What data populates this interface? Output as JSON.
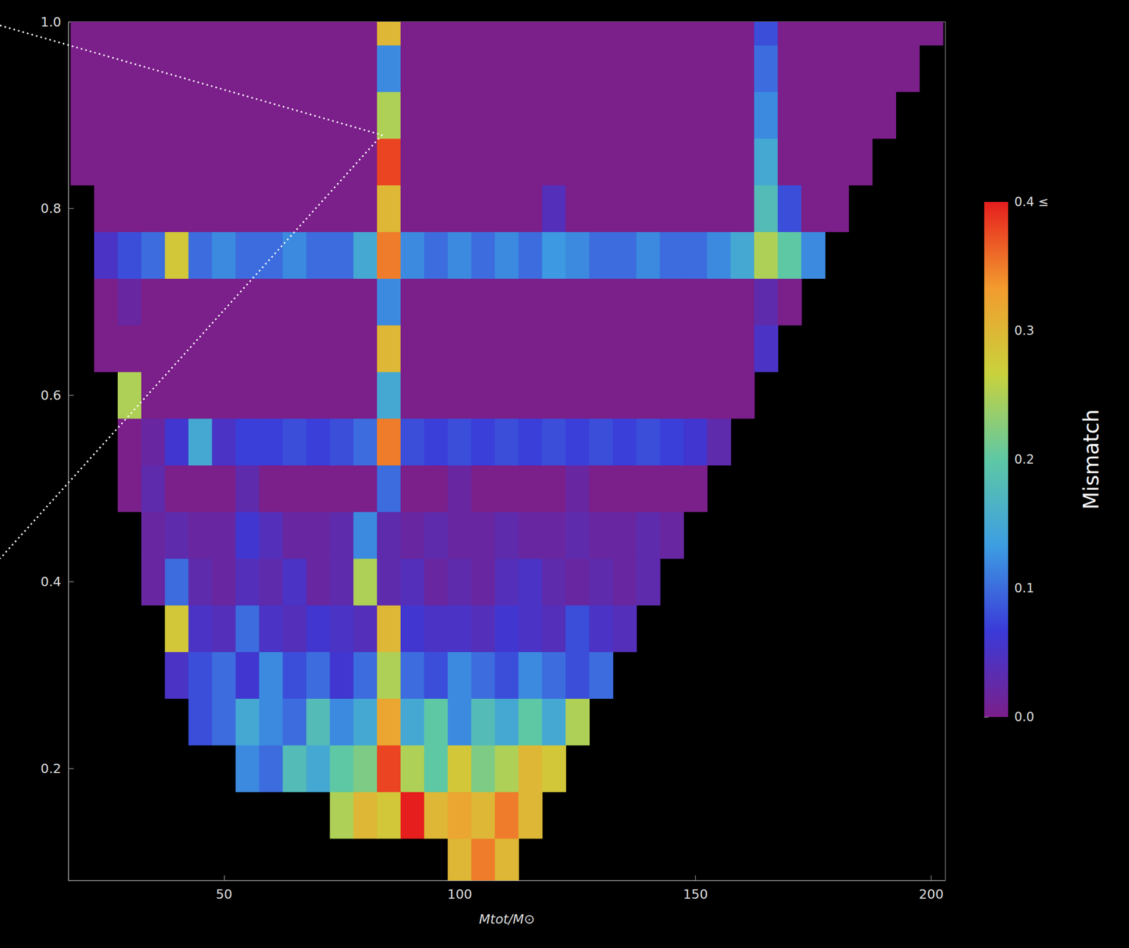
{
  "chart_data": {
    "type": "heatmap",
    "x_label": "Mtot/M⊙",
    "xlim": [
      17,
      203
    ],
    "xticks": [
      50,
      100,
      150,
      200
    ],
    "ylim": [
      0.08,
      1
    ],
    "yticks": [
      0.2,
      0.4,
      0.6,
      0.8,
      {
        "value": 1,
        "label": "1.0"
      }
    ],
    "grid": false,
    "x": [
      20,
      25,
      30,
      35,
      40,
      45,
      50,
      55,
      60,
      65,
      70,
      75,
      80,
      85,
      90,
      95,
      100,
      105,
      110,
      115,
      120,
      125,
      130,
      135,
      140,
      145,
      150,
      155,
      160,
      165,
      170,
      175,
      180,
      185,
      190,
      195,
      200
    ],
    "y": [
      0.1,
      0.15,
      0.2,
      0.25,
      0.3,
      0.35,
      0.4,
      0.45,
      0.5,
      0.55,
      0.6,
      0.65,
      0.7,
      0.75,
      0.8,
      0.85,
      0.9,
      0.95,
      1
    ],
    "values": [
      [
        null,
        null,
        null,
        null,
        null,
        null,
        null,
        null,
        null,
        null,
        null,
        null,
        null,
        null,
        null,
        null,
        0.3,
        0.35,
        0.3,
        null,
        null,
        null,
        null,
        null,
        null,
        null,
        null,
        null,
        null,
        null,
        null,
        null,
        null,
        null,
        null,
        null,
        null
      ],
      [
        null,
        null,
        null,
        null,
        null,
        null,
        null,
        null,
        null,
        null,
        null,
        0.25,
        0.3,
        0.28,
        0.4,
        0.3,
        0.32,
        0.3,
        0.35,
        0.3,
        null,
        null,
        null,
        null,
        null,
        null,
        null,
        null,
        null,
        null,
        null,
        null,
        null,
        null,
        null,
        null,
        null
      ],
      [
        null,
        null,
        null,
        null,
        null,
        null,
        null,
        0.12,
        0.1,
        0.18,
        0.15,
        0.2,
        0.22,
        0.38,
        0.25,
        0.2,
        0.28,
        0.22,
        0.25,
        0.3,
        0.28,
        null,
        null,
        null,
        null,
        null,
        null,
        null,
        null,
        null,
        null,
        null,
        null,
        null,
        null,
        null,
        null
      ],
      [
        null,
        null,
        null,
        null,
        null,
        0.08,
        0.1,
        0.15,
        0.12,
        0.1,
        0.18,
        0.12,
        0.15,
        0.32,
        0.15,
        0.2,
        0.12,
        0.18,
        0.15,
        0.2,
        0.15,
        0.25,
        null,
        null,
        null,
        null,
        null,
        null,
        null,
        null,
        null,
        null,
        null,
        null,
        null,
        null,
        null
      ],
      [
        null,
        null,
        null,
        null,
        0.05,
        0.08,
        0.1,
        0.06,
        0.12,
        0.08,
        0.1,
        0.06,
        0.1,
        0.25,
        0.1,
        0.08,
        0.12,
        0.1,
        0.08,
        0.12,
        0.1,
        0.08,
        0.1,
        null,
        null,
        null,
        null,
        null,
        null,
        null,
        null,
        null,
        null,
        null,
        null,
        null,
        null
      ],
      [
        null,
        null,
        null,
        null,
        0.28,
        0.05,
        0.04,
        0.1,
        0.05,
        0.04,
        0.06,
        0.05,
        0.04,
        0.3,
        0.06,
        0.05,
        0.05,
        0.04,
        0.06,
        0.05,
        0.04,
        0.08,
        0.05,
        0.04,
        null,
        null,
        null,
        null,
        null,
        null,
        null,
        null,
        null,
        null,
        null,
        null,
        null
      ],
      [
        null,
        null,
        null,
        0.02,
        0.1,
        0.03,
        0.02,
        0.04,
        0.03,
        0.05,
        0.02,
        0.03,
        0.25,
        0.03,
        0.04,
        0.02,
        0.03,
        0.02,
        0.04,
        0.05,
        0.03,
        0.02,
        0.03,
        0.02,
        0.03,
        null,
        null,
        null,
        null,
        null,
        null,
        null,
        null,
        null,
        null,
        null,
        null
      ],
      [
        null,
        null,
        null,
        0.02,
        0.03,
        0.02,
        0.02,
        0.06,
        0.04,
        0.02,
        0.02,
        0.03,
        0.12,
        0.03,
        0.02,
        0.03,
        0.02,
        0.02,
        0.03,
        0.02,
        0.02,
        0.03,
        0.02,
        0.02,
        0.03,
        0.02,
        null,
        null,
        null,
        null,
        null,
        null,
        null,
        null,
        null,
        null,
        null
      ],
      [
        null,
        null,
        0,
        0.03,
        0,
        0,
        0,
        0.03,
        0,
        0,
        0,
        0,
        0,
        0.1,
        0,
        0,
        0.02,
        0,
        0,
        0,
        0,
        0.02,
        0,
        0,
        0,
        0,
        0,
        null,
        null,
        null,
        null,
        null,
        null,
        null,
        null,
        null,
        null
      ],
      [
        null,
        null,
        0,
        0.02,
        0.06,
        0.15,
        0.05,
        0.07,
        0.07,
        0.08,
        0.07,
        0.08,
        0.1,
        0.35,
        0.08,
        0.07,
        0.08,
        0.07,
        0.08,
        0.07,
        0.08,
        0.07,
        0.08,
        0.07,
        0.08,
        0.07,
        0.06,
        0.03,
        null,
        null,
        null,
        null,
        null,
        null,
        null,
        null,
        null
      ],
      [
        null,
        null,
        0.25,
        0,
        0,
        0,
        0,
        0,
        0,
        0,
        0,
        0,
        0,
        0.15,
        0,
        0,
        0,
        0,
        0,
        0,
        0,
        0,
        0,
        0,
        0,
        0,
        0,
        0,
        0,
        null,
        null,
        null,
        null,
        null,
        null,
        null,
        null
      ],
      [
        null,
        0,
        0,
        0,
        0,
        0,
        0,
        0,
        0,
        0,
        0,
        0,
        0,
        0.3,
        0,
        0,
        0,
        0,
        0,
        0,
        0,
        0,
        0,
        0,
        0,
        0,
        0,
        0,
        0,
        0.05,
        null,
        null,
        null,
        null,
        null,
        null,
        null
      ],
      [
        null,
        0,
        0.02,
        0,
        0,
        0,
        0,
        0,
        0,
        0,
        0,
        0,
        0,
        0.12,
        0,
        0,
        0,
        0,
        0,
        0,
        0,
        0,
        0,
        0,
        0,
        0,
        0,
        0,
        0,
        0.03,
        0,
        null,
        null,
        null,
        null,
        null,
        null
      ],
      [
        null,
        0.05,
        0.08,
        0.1,
        0.28,
        0.1,
        0.12,
        0.1,
        0.1,
        0.12,
        0.1,
        0.1,
        0.15,
        0.35,
        0.12,
        0.1,
        0.12,
        0.1,
        0.12,
        0.1,
        0.13,
        0.12,
        0.1,
        0.1,
        0.12,
        0.1,
        0.1,
        0.12,
        0.15,
        0.25,
        0.2,
        0.12,
        null,
        null,
        null,
        null,
        null
      ],
      [
        null,
        0,
        0,
        0,
        0,
        0,
        0,
        0,
        0,
        0,
        0,
        0,
        0,
        0.3,
        0,
        0,
        0,
        0,
        0,
        0,
        0.04,
        0,
        0,
        0,
        0,
        0,
        0,
        0,
        0,
        0.18,
        0.08,
        0,
        0,
        null,
        null,
        null,
        null
      ],
      [
        0,
        0,
        0,
        0,
        0,
        0,
        0,
        0,
        0,
        0,
        0,
        0,
        0,
        0.38,
        0,
        0,
        0,
        0,
        0,
        0,
        0,
        0,
        0,
        0,
        0,
        0,
        0,
        0,
        0,
        0.15,
        0,
        0,
        0,
        0,
        null,
        null,
        null
      ],
      [
        0,
        0,
        0,
        0,
        0,
        0,
        0,
        0,
        0,
        0,
        0,
        0,
        0,
        0.25,
        0,
        0,
        0,
        0,
        0,
        0,
        0,
        0,
        0,
        0,
        0,
        0,
        0,
        0,
        0,
        0.12,
        0,
        0,
        0,
        0,
        0,
        null,
        null
      ],
      [
        0,
        0,
        0,
        0,
        0,
        0,
        0,
        0,
        0,
        0,
        0,
        0,
        0,
        0.12,
        0,
        0,
        0,
        0,
        0,
        0,
        0,
        0,
        0,
        0,
        0,
        0,
        0,
        0,
        0,
        0.1,
        0,
        0,
        0,
        0,
        0,
        0,
        null
      ],
      [
        0,
        0,
        0,
        0,
        0,
        0,
        0,
        0,
        0,
        0,
        0,
        0,
        0,
        0.3,
        0,
        0,
        0,
        0,
        0,
        0,
        0,
        0,
        0,
        0,
        0,
        0,
        0,
        0,
        0,
        0.08,
        0,
        0,
        0,
        0,
        0,
        0,
        0
      ]
    ],
    "colorbar": {
      "label": "Mismatch",
      "range": [
        0,
        0.4
      ],
      "ticks": [
        {
          "value": 0,
          "label": "0.0"
        },
        0.1,
        0.2,
        0.3,
        {
          "value": 0.4,
          "label": "0.4 ≤"
        }
      ],
      "colors": [
        "#7b1f8a",
        "#3a3ad8",
        "#3d9ee2",
        "#5ec8a4",
        "#c9d23c",
        "#f29b2e",
        "#e61e1e"
      ]
    }
  }
}
